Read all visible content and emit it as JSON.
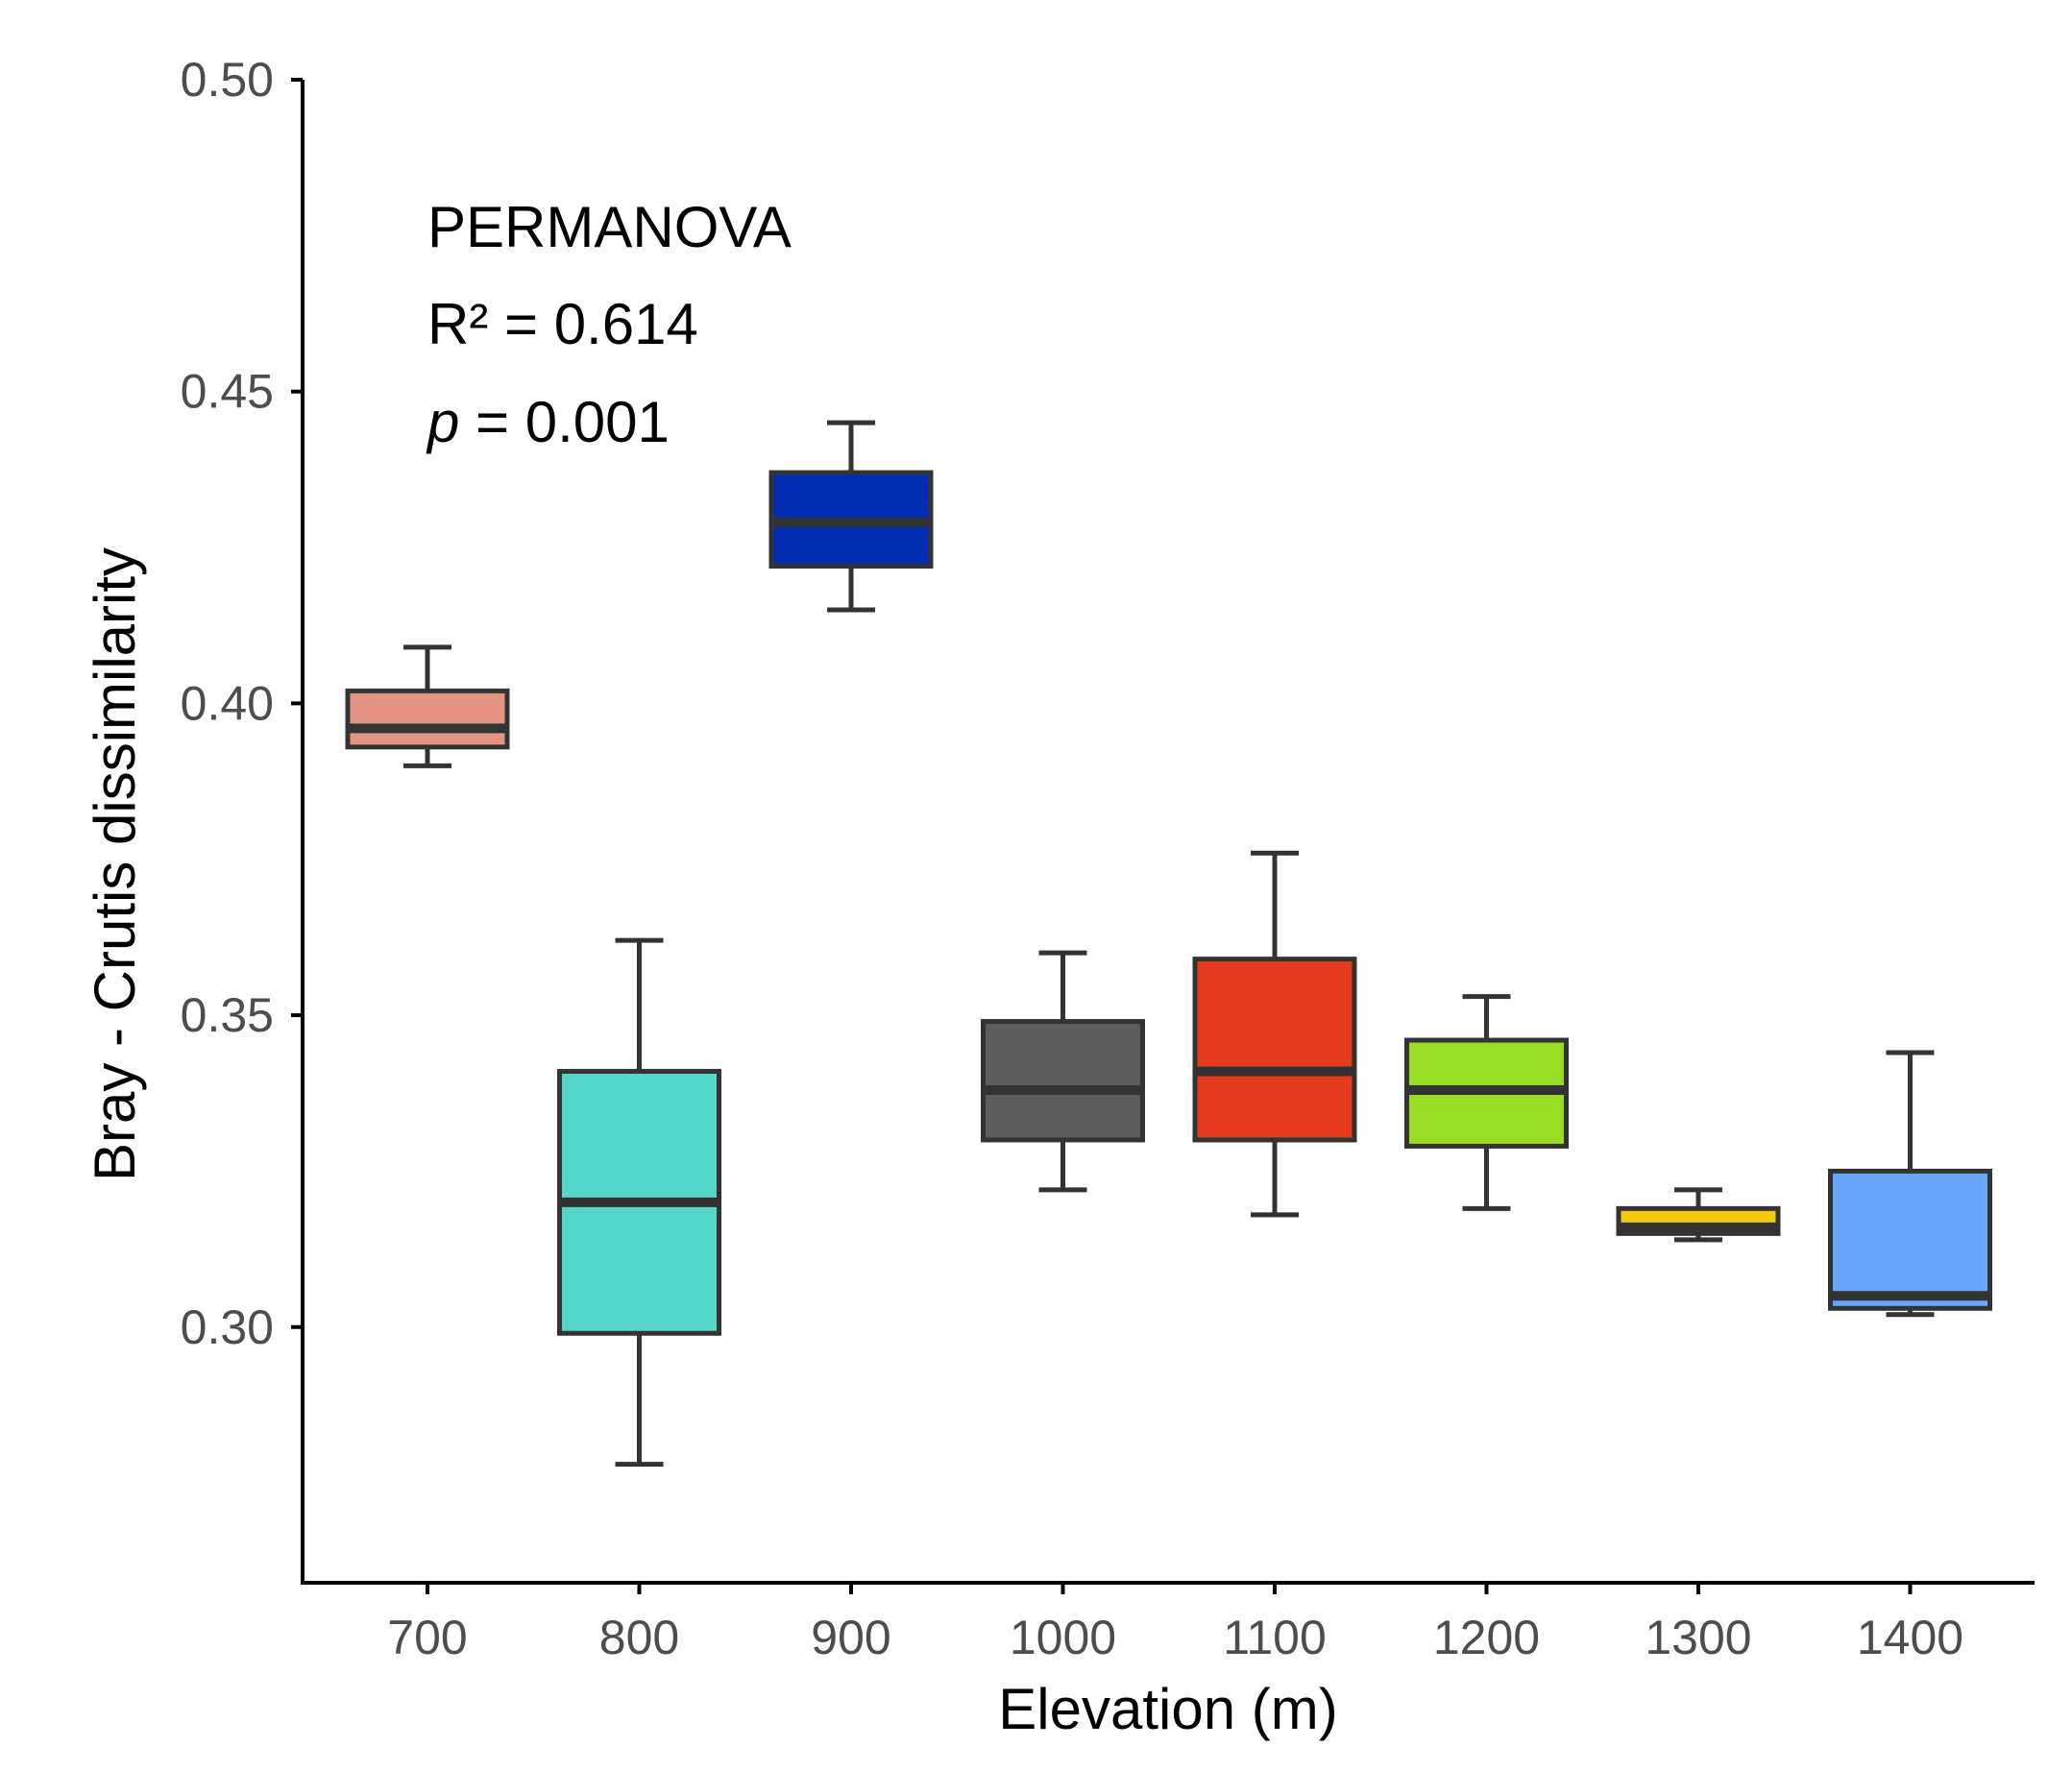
{
  "chart_data": {
    "type": "boxplot",
    "xlabel": "Elevation (m)",
    "ylabel": "Bray - Crutis dissimilarity",
    "ylim": [
      0.259,
      0.5
    ],
    "yticks": [
      0.3,
      0.35,
      0.4,
      0.45,
      0.5
    ],
    "ytick_labels": [
      "0.30",
      "0.35",
      "0.40",
      "0.45",
      "0.50"
    ],
    "categories": [
      "700",
      "800",
      "900",
      "1000",
      "1100",
      "1200",
      "1300",
      "1400"
    ],
    "boxes": [
      {
        "category": "700",
        "whisker_low": 0.39,
        "q1": 0.393,
        "median": 0.396,
        "q3": 0.402,
        "whisker_high": 0.409,
        "color": "#e59484"
      },
      {
        "category": "800",
        "whisker_low": 0.278,
        "q1": 0.299,
        "median": 0.32,
        "q3": 0.341,
        "whisker_high": 0.362,
        "color": "#56d6c8"
      },
      {
        "category": "900",
        "whisker_low": 0.415,
        "q1": 0.422,
        "median": 0.429,
        "q3": 0.437,
        "whisker_high": 0.445,
        "color": "#002db3"
      },
      {
        "category": "1000",
        "whisker_low": 0.322,
        "q1": 0.33,
        "median": 0.338,
        "q3": 0.349,
        "whisker_high": 0.36,
        "color": "#5c5c5c"
      },
      {
        "category": "1100",
        "whisker_low": 0.318,
        "q1": 0.33,
        "median": 0.341,
        "q3": 0.359,
        "whisker_high": 0.376,
        "color": "#e63a1f"
      },
      {
        "category": "1200",
        "whisker_low": 0.319,
        "q1": 0.329,
        "median": 0.338,
        "q3": 0.346,
        "whisker_high": 0.353,
        "color": "#98dc24"
      },
      {
        "category": "1300",
        "whisker_low": 0.314,
        "q1": 0.315,
        "median": 0.316,
        "q3": 0.319,
        "whisker_high": 0.322,
        "color": "#f5c80a"
      },
      {
        "category": "1400",
        "whisker_low": 0.302,
        "q1": 0.303,
        "median": 0.305,
        "q3": 0.325,
        "whisker_high": 0.344,
        "color": "#68a6ff"
      }
    ],
    "annotation": {
      "title": "PERMANOVA",
      "r2_text": "R² = 0.614",
      "p_symbol": "p",
      "p_text": " = 0.001"
    },
    "grid": false,
    "colors": {
      "box_stroke": "#333333",
      "axis": "#000000"
    }
  }
}
